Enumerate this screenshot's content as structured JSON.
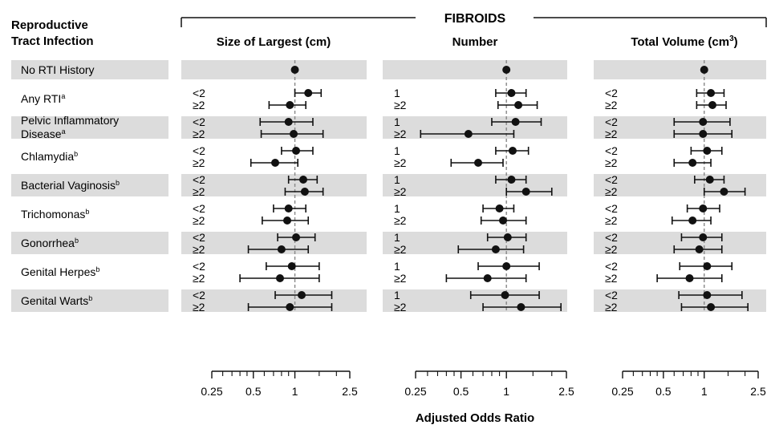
{
  "chart_data": {
    "type": "forest",
    "header_label": "Reproductive Tract Infection",
    "group_title": "FIBROIDS",
    "xlabel": "Adjusted Odds Ratio",
    "x_scale": "log",
    "xlim": [
      0.25,
      2.5
    ],
    "tick_labels": [
      "0.25",
      "0.5",
      "1",
      "2.5"
    ],
    "tick_values": [
      0.25,
      0.5,
      1,
      2.5
    ],
    "reference_line": 1,
    "colors": {
      "band": "#dcdcdc",
      "marker": "#111111",
      "refline": "#888888"
    },
    "panels": [
      {
        "title": "Size of Largest (cm)",
        "levels": [
          "<2",
          "≥2"
        ]
      },
      {
        "title": "Number",
        "levels": [
          "1",
          "≥2"
        ]
      },
      {
        "title": "Total Volume (cm",
        "title_sup": "3",
        "title_end": ")",
        "levels": [
          "<2",
          "≥2"
        ]
      }
    ],
    "rows": [
      {
        "label": "No RTI History",
        "sup": "",
        "shaded": true,
        "reference": true
      },
      {
        "label": "Any RTI",
        "sup": "a",
        "shaded": false,
        "data": [
          [
            [
              1.25,
              1.0,
              1.55
            ],
            [
              0.92,
              0.65,
              1.2
            ]
          ],
          [
            [
              1.08,
              0.85,
              1.35
            ],
            [
              1.2,
              0.88,
              1.6
            ]
          ],
          [
            [
              1.12,
              0.88,
              1.4
            ],
            [
              1.15,
              0.88,
              1.45
            ]
          ]
        ]
      },
      {
        "label": "Pelvic Inflammatory Disease",
        "sup": "a",
        "shaded": true,
        "data": [
          [
            [
              0.9,
              0.56,
              1.35
            ],
            [
              0.98,
              0.57,
              1.6
            ]
          ],
          [
            [
              1.15,
              0.8,
              1.7
            ],
            [
              0.56,
              0.27,
              1.12
            ]
          ],
          [
            [
              0.98,
              0.6,
              1.55
            ],
            [
              0.98,
              0.6,
              1.6
            ]
          ]
        ]
      },
      {
        "label": "Chlamydia",
        "sup": "b",
        "shaded": false,
        "data": [
          [
            [
              1.02,
              0.8,
              1.35
            ],
            [
              0.72,
              0.48,
              1.05
            ]
          ],
          [
            [
              1.1,
              0.85,
              1.4
            ],
            [
              0.65,
              0.43,
              0.95
            ]
          ],
          [
            [
              1.05,
              0.8,
              1.35
            ],
            [
              0.82,
              0.6,
              1.12
            ]
          ]
        ]
      },
      {
        "label": "Bacterial Vaginosis",
        "sup": "b",
        "shaded": true,
        "data": [
          [
            [
              1.15,
              0.9,
              1.45
            ],
            [
              1.18,
              0.85,
              1.6
            ]
          ],
          [
            [
              1.08,
              0.85,
              1.35
            ],
            [
              1.35,
              1.0,
              2.0
            ]
          ],
          [
            [
              1.1,
              0.85,
              1.4
            ],
            [
              1.4,
              1.0,
              2.0
            ]
          ]
        ]
      },
      {
        "label": "Trichomonas",
        "sup": "b",
        "shaded": false,
        "data": [
          [
            [
              0.9,
              0.7,
              1.2
            ],
            [
              0.88,
              0.58,
              1.25
            ]
          ],
          [
            [
              0.9,
              0.7,
              1.12
            ],
            [
              0.95,
              0.68,
              1.35
            ]
          ],
          [
            [
              0.98,
              0.75,
              1.3
            ],
            [
              0.82,
              0.58,
              1.12
            ]
          ]
        ]
      },
      {
        "label": "Gonorrhea",
        "sup": "b",
        "shaded": true,
        "data": [
          [
            [
              1.02,
              0.75,
              1.4
            ],
            [
              0.8,
              0.46,
              1.25
            ]
          ],
          [
            [
              1.02,
              0.75,
              1.35
            ],
            [
              0.85,
              0.48,
              1.3
            ]
          ],
          [
            [
              0.98,
              0.68,
              1.35
            ],
            [
              0.92,
              0.6,
              1.35
            ]
          ]
        ]
      },
      {
        "label": "Genital Herpes",
        "sup": "b",
        "shaded": false,
        "data": [
          [
            [
              0.95,
              0.62,
              1.5
            ],
            [
              0.78,
              0.4,
              1.5
            ]
          ],
          [
            [
              1.0,
              0.65,
              1.65
            ],
            [
              0.75,
              0.4,
              1.35
            ]
          ],
          [
            [
              1.05,
              0.66,
              1.6
            ],
            [
              0.78,
              0.45,
              1.35
            ]
          ]
        ]
      },
      {
        "label": "Genital Warts",
        "sup": "b",
        "shaded": true,
        "data": [
          [
            [
              1.12,
              0.72,
              1.85
            ],
            [
              0.92,
              0.46,
              1.85
            ]
          ],
          [
            [
              0.98,
              0.58,
              1.65
            ],
            [
              1.25,
              0.7,
              2.3
            ]
          ],
          [
            [
              1.05,
              0.65,
              1.9
            ],
            [
              1.12,
              0.68,
              2.1
            ]
          ]
        ]
      }
    ]
  }
}
